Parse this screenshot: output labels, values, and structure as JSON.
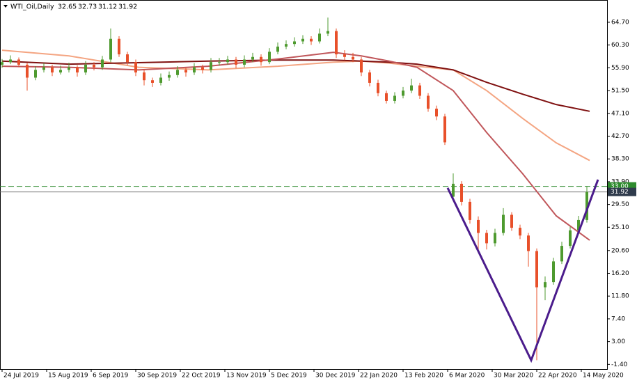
{
  "chart_data": {
    "type": "candlestick",
    "symbol": "WTI_Oil,Daily",
    "last_ohlc": [
      32.65,
      32.73,
      31.12,
      31.92
    ],
    "xlim": [
      -0.75,
      217.25
    ],
    "ylim": [
      -2.3,
      69.0
    ],
    "xticks": [
      {
        "value": 0,
        "label": "24 Jul 2019"
      },
      {
        "value": 16,
        "label": "15 Aug 2019"
      },
      {
        "value": 32,
        "label": "6 Sep 2019"
      },
      {
        "value": 48,
        "label": "30 Sep 2019"
      },
      {
        "value": 64,
        "label": "22 Oct 2019"
      },
      {
        "value": 80,
        "label": "13 Nov 2019"
      },
      {
        "value": 96,
        "label": "5 Dec 2019"
      },
      {
        "value": 112,
        "label": "30 Dec 2019"
      },
      {
        "value": 128,
        "label": "22 Jan 2020"
      },
      {
        "value": 144,
        "label": "13 Feb 2020"
      },
      {
        "value": 160,
        "label": "6 Mar 2020"
      },
      {
        "value": 176,
        "label": "30 Mar 2020"
      },
      {
        "value": 192,
        "label": "22 Apr 2020"
      },
      {
        "value": 208,
        "label": "14 May 2020"
      }
    ],
    "yticks": [
      {
        "value": 64.7,
        "label": "64.70"
      },
      {
        "value": 60.3,
        "label": "60.30"
      },
      {
        "value": 55.9,
        "label": "55.90"
      },
      {
        "value": 51.5,
        "label": "51.50"
      },
      {
        "value": 47.1,
        "label": "47.10"
      },
      {
        "value": 42.7,
        "label": "42.70"
      },
      {
        "value": 38.3,
        "label": "38.30"
      },
      {
        "value": 33.9,
        "label": "33.90"
      },
      {
        "value": 29.5,
        "label": "29.50"
      },
      {
        "value": 25.1,
        "label": "25.10"
      },
      {
        "value": 20.6,
        "label": "20.60"
      },
      {
        "value": 16.2,
        "label": "16.20"
      },
      {
        "value": 11.8,
        "label": "11.80"
      },
      {
        "value": 7.4,
        "label": "7.40"
      },
      {
        "value": 3,
        "label": "3.00"
      },
      {
        "value": -1.4,
        "label": "-1.40"
      }
    ],
    "bull_color": "#4e9a2f",
    "bear_color": "#e8502a",
    "candles": {
      "x": [
        0,
        3,
        6,
        9,
        12,
        15,
        18,
        21,
        24,
        27,
        30,
        33,
        36,
        39,
        42,
        45,
        48,
        51,
        54,
        57,
        60,
        63,
        66,
        69,
        72,
        75,
        78,
        81,
        84,
        87,
        90,
        93,
        96,
        99,
        102,
        105,
        108,
        111,
        114,
        117,
        120,
        123,
        126,
        129,
        132,
        135,
        138,
        141,
        144,
        147,
        150,
        153,
        156,
        159,
        162,
        165,
        168,
        171,
        174,
        177,
        180,
        183,
        186,
        189,
        192,
        195,
        198,
        201,
        204,
        207,
        210
      ],
      "ohlc": [
        [
          56.5,
          57.6,
          55.9,
          57.0
        ],
        [
          57.0,
          58.3,
          56.6,
          57.5
        ],
        [
          57.5,
          57.9,
          56.0,
          56.5
        ],
        [
          56.5,
          56.9,
          51.5,
          54.0
        ],
        [
          54.0,
          56.2,
          53.5,
          55.5
        ],
        [
          55.5,
          56.8,
          55.0,
          56.0
        ],
        [
          56.0,
          56.5,
          54.3,
          55.0
        ],
        [
          55.0,
          56.3,
          54.6,
          55.5
        ],
        [
          55.5,
          56.9,
          55.0,
          56.0
        ],
        [
          56.0,
          56.4,
          54.2,
          55.0
        ],
        [
          55.0,
          57.2,
          54.5,
          56.5
        ],
        [
          56.5,
          57.0,
          55.4,
          56.0
        ],
        [
          56.0,
          58.2,
          55.5,
          57.5
        ],
        [
          57.5,
          63.5,
          57.0,
          61.5
        ],
        [
          61.5,
          62.0,
          58.0,
          58.5
        ],
        [
          58.5,
          59.0,
          56.4,
          57.0
        ],
        [
          57.0,
          57.5,
          54.3,
          55.0
        ],
        [
          55.0,
          55.6,
          52.5,
          53.5
        ],
        [
          53.5,
          54.0,
          52.2,
          53.0
        ],
        [
          53.0,
          54.8,
          52.5,
          54.0
        ],
        [
          54.0,
          55.2,
          53.4,
          54.5
        ],
        [
          54.5,
          56.2,
          54.0,
          55.5
        ],
        [
          55.5,
          56.0,
          54.2,
          55.0
        ],
        [
          55.0,
          56.8,
          54.5,
          56.0
        ],
        [
          56.0,
          56.5,
          54.8,
          55.5
        ],
        [
          55.5,
          57.8,
          55.0,
          57.0
        ],
        [
          57.0,
          57.8,
          56.3,
          57.0
        ],
        [
          57.0,
          58.2,
          56.5,
          57.5
        ],
        [
          57.5,
          58.0,
          55.8,
          56.5
        ],
        [
          56.5,
          58.3,
          56.0,
          57.5
        ],
        [
          57.5,
          58.8,
          57.0,
          58.0
        ],
        [
          58.0,
          58.5,
          56.3,
          57.0
        ],
        [
          57.0,
          59.7,
          56.6,
          59.0
        ],
        [
          59.0,
          60.8,
          58.5,
          60.0
        ],
        [
          60.0,
          61.2,
          59.5,
          60.5
        ],
        [
          60.5,
          61.8,
          60.0,
          61.0
        ],
        [
          61.0,
          62.2,
          60.5,
          61.5
        ],
        [
          61.5,
          62.0,
          60.3,
          61.0
        ],
        [
          61.0,
          63.5,
          60.6,
          62.5
        ],
        [
          62.5,
          65.6,
          62.0,
          63.0
        ],
        [
          63.0,
          63.5,
          57.8,
          58.5
        ],
        [
          58.5,
          59.3,
          57.4,
          58.0
        ],
        [
          58.0,
          58.8,
          57.0,
          57.5
        ],
        [
          57.5,
          58.0,
          54.3,
          55.0
        ],
        [
          55.0,
          55.5,
          52.3,
          53.0
        ],
        [
          53.0,
          53.6,
          50.4,
          51.0
        ],
        [
          51.0,
          51.5,
          49.0,
          49.5
        ],
        [
          49.5,
          51.2,
          49.0,
          50.5
        ],
        [
          50.5,
          52.2,
          50.0,
          51.5
        ],
        [
          51.5,
          53.8,
          51.0,
          52.5
        ],
        [
          52.5,
          53.0,
          49.9,
          50.5
        ],
        [
          50.5,
          51.0,
          47.4,
          48.0
        ],
        [
          48.0,
          48.6,
          45.8,
          46.5
        ],
        [
          46.5,
          47.0,
          41.0,
          41.5
        ],
        [
          31.0,
          35.5,
          30.5,
          33.5
        ],
        [
          33.5,
          34.0,
          29.3,
          30.0
        ],
        [
          30.0,
          30.6,
          25.8,
          26.5
        ],
        [
          26.5,
          27.2,
          20.5,
          24.0
        ],
        [
          24.0,
          24.6,
          20.8,
          22.0
        ],
        [
          22.0,
          24.8,
          21.4,
          24.0
        ],
        [
          24.0,
          28.8,
          23.5,
          27.5
        ],
        [
          27.5,
          28.0,
          24.4,
          25.0
        ],
        [
          25.0,
          25.6,
          22.8,
          23.5
        ],
        [
          23.5,
          24.0,
          17.5,
          20.5
        ],
        [
          20.5,
          21.0,
          -0.6,
          13.5
        ],
        [
          13.5,
          15.6,
          11.0,
          14.5
        ],
        [
          14.5,
          19.2,
          14.0,
          18.5
        ],
        [
          18.5,
          22.3,
          18.0,
          21.5
        ],
        [
          21.5,
          25.2,
          21.0,
          24.5
        ],
        [
          24.5,
          27.3,
          24.0,
          26.5
        ],
        [
          26.5,
          33.0,
          26.0,
          31.9
        ]
      ]
    },
    "moving_averages": {
      "x": [
        0,
        24,
        49,
        74,
        99,
        119,
        129,
        139,
        149,
        162,
        174,
        187,
        199,
        211
      ],
      "lines": [
        {
          "color": "#f4a582",
          "values": [
            59.3,
            58.2,
            56.0,
            55.5,
            56.2,
            57.0,
            57.2,
            56.8,
            56.2,
            55.5,
            51.5,
            46.1,
            41.4,
            38.0
          ]
        },
        {
          "color": "#7f1010",
          "values": [
            57.2,
            56.6,
            56.9,
            57.2,
            57.4,
            57.4,
            57.2,
            57.0,
            56.6,
            55.5,
            53.1,
            50.8,
            48.8,
            47.5
          ]
        },
        {
          "color": "#c0565a",
          "values": [
            56.2,
            56.0,
            55.5,
            56.2,
            57.6,
            58.9,
            58.2,
            57.2,
            56.0,
            51.5,
            43.4,
            35.4,
            27.3,
            22.6
          ]
        }
      ]
    },
    "trendline": {
      "color": "#4b1c8c",
      "x": [
        160,
        190,
        214
      ],
      "y": [
        32.7,
        -0.6,
        34.3
      ]
    },
    "level_line": {
      "value": 33,
      "label": "33.00",
      "color": "#2e8b2e"
    },
    "bid_line": {
      "value": 31.92,
      "label": "31.92",
      "color": "#707070"
    }
  }
}
